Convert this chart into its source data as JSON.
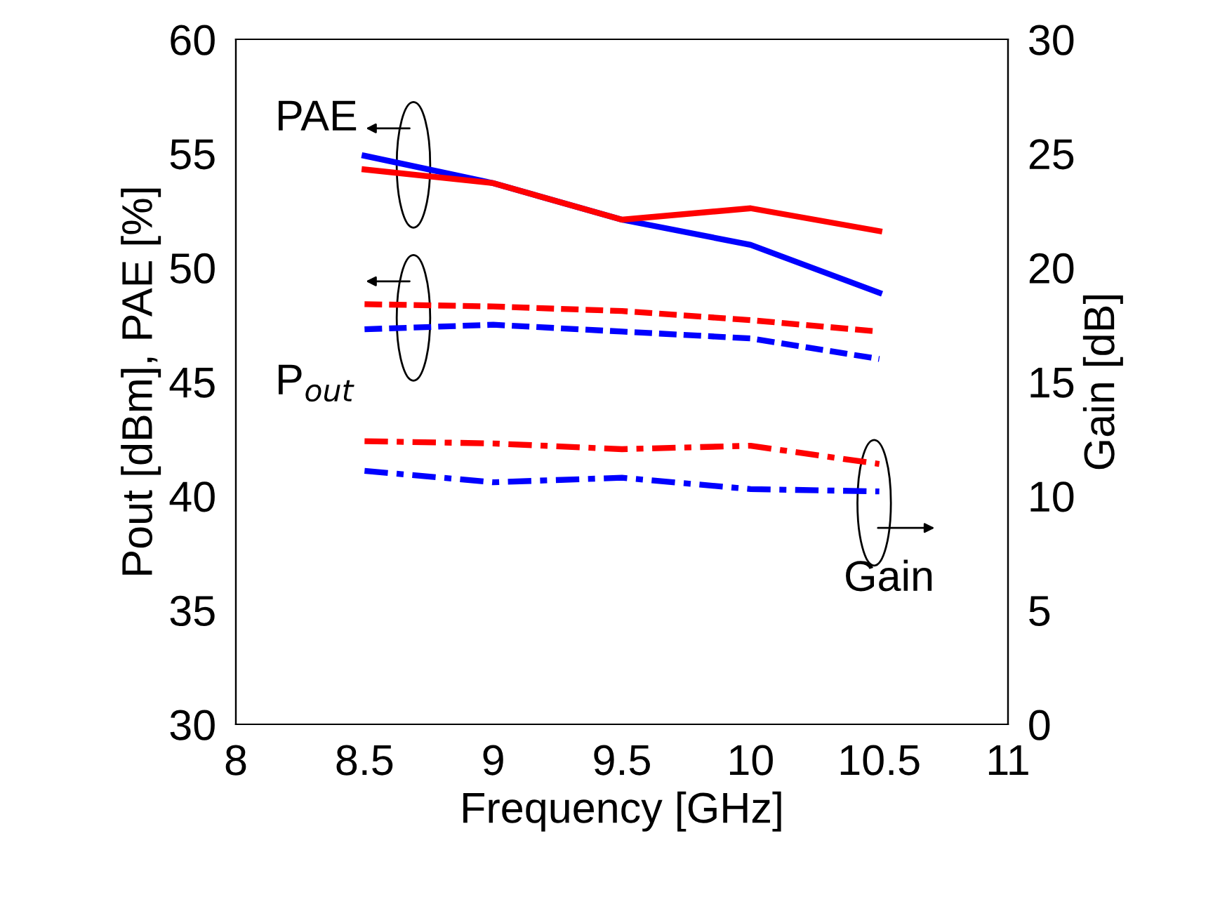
{
  "chart_data": {
    "type": "line",
    "xlabel": "Frequency [GHz]",
    "ylabel": "Pout [dBm], PAE [%]",
    "y2label": "Gain [dB]",
    "x": [
      8.5,
      9,
      9.5,
      10,
      10.5
    ],
    "series": [
      {
        "color": "#0000ff",
        "values": [
          54.9,
          53.7,
          52.1,
          51.0,
          48.9
        ],
        "line_style": "solid"
      },
      {
        "color": "#ff0000",
        "values": [
          54.3,
          53.7,
          52.1,
          52.6,
          51.6
        ],
        "line_style": "solid"
      },
      {
        "color": "#ff0000",
        "values": [
          48.4,
          48.3,
          48.1,
          47.7,
          47.2
        ],
        "line_style": "dashed"
      },
      {
        "color": "#0000ff",
        "values": [
          47.3,
          47.5,
          47.2,
          46.9,
          46.0
        ],
        "line_style": "dashed"
      },
      {
        "color": "#ff0000",
        "values": [
          12.4,
          12.3,
          12.05,
          12.2,
          11.4
        ],
        "line_style": "dashdot",
        "axis": "y2"
      },
      {
        "color": "#0000ff",
        "values": [
          11.1,
          10.6,
          10.8,
          10.3,
          10.2
        ],
        "line_style": "dashdot",
        "axis": "y2"
      }
    ],
    "xlim": [
      8,
      11
    ],
    "xticks": [
      8,
      8.5,
      9,
      9.5,
      10,
      10.5,
      11
    ],
    "ylim": [
      30,
      60
    ],
    "yticks": [
      30,
      35,
      40,
      45,
      50,
      55,
      60
    ],
    "y2lim": [
      0,
      30
    ],
    "y2ticks": [
      0,
      5,
      10,
      15,
      20,
      25,
      30
    ],
    "grid": false,
    "marker": "none",
    "annotations": [
      "PAE",
      "P$_{out}$",
      "Gain"
    ]
  }
}
